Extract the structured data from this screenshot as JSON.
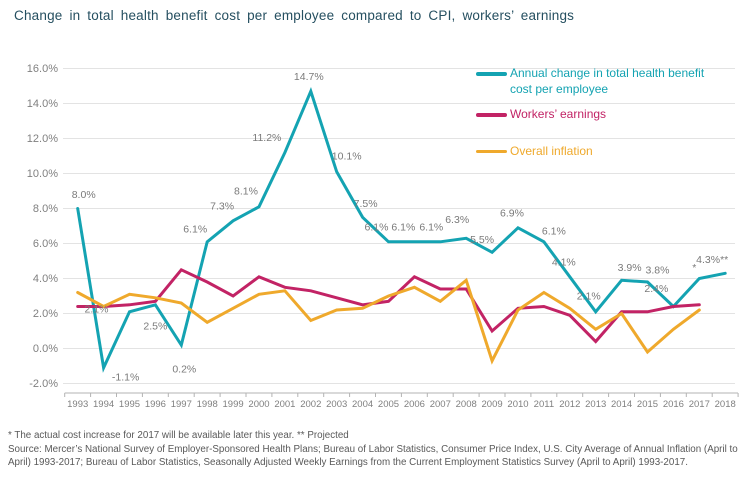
{
  "title": "Change in total health benefit cost per employee compared to CPI, workers’ earnings",
  "legend": {
    "entries": [
      {
        "color": "#14a3b2",
        "line1": "Annual change in total health benefit",
        "line2": "cost per employee"
      },
      {
        "color": "#c22365",
        "line1": "Workers’ earnings",
        "line2": ""
      },
      {
        "color": "#efa92c",
        "line1": "Overall inflation",
        "line2": ""
      }
    ]
  },
  "footnotes": {
    "note": "* The actual cost increase for 2017 will be available later this year.  ** Projected",
    "source": "Source: Mercer’s National Survey of Employer-Sponsored Health Plans; Bureau of Labor Statistics, Consumer Price Index, U.S. City Average of Annual Inflation (April to April) 1993-2017; Bureau of Labor Statistics, Seasonally Adjusted Weekly Earnings from the Current Employment Statistics Survey (April to April) 1993-2017."
  },
  "chart_data": {
    "type": "line",
    "title": "Change in total health benefit cost per employee compared to CPI, workers’ earnings",
    "x": [
      "1993",
      "1994",
      "1995",
      "1996",
      "1997",
      "1998",
      "1999",
      "2000",
      "2001",
      "2002",
      "2003",
      "2004",
      "2005",
      "2006",
      "2007",
      "2008",
      "2009",
      "2010",
      "2011",
      "2012",
      "2013",
      "2014",
      "2015",
      "2016",
      "2017",
      "2018"
    ],
    "ylim": [
      -2,
      16
    ],
    "ytick_step": 2,
    "yticks": [
      "16.0%",
      "14.0%",
      "12.0%",
      "10.0%",
      "8.0%",
      "6.0%",
      "4.0%",
      "2.0%",
      "0.0%",
      "-2.0%"
    ],
    "grid": true,
    "legend_position": "top-right",
    "series": [
      {
        "id": "health-cost",
        "name": "Annual change in total health benefit cost per employee",
        "color": "#14a3b2",
        "values": [
          8.0,
          -1.1,
          2.1,
          2.5,
          0.2,
          6.1,
          7.3,
          8.1,
          11.2,
          14.7,
          10.1,
          7.5,
          6.1,
          6.1,
          6.1,
          6.3,
          5.5,
          6.9,
          6.1,
          4.1,
          2.1,
          3.9,
          3.8,
          2.4,
          4.0,
          4.3
        ],
        "point_labels": [
          {
            "text": "8.0%",
            "dx": 6,
            "dy": -14
          },
          {
            "text": "-1.1%",
            "dx": 22,
            "dy": 9
          },
          {
            "text": "2.1%",
            "dx": -33,
            "dy": -3
          },
          {
            "text": "2.5%",
            "dx": 0,
            "dy": 21
          },
          {
            "text": "0.2%",
            "dx": 3,
            "dy": 24
          },
          {
            "text": "6.1%",
            "dx": -12,
            "dy": -13
          },
          {
            "text": "7.3%",
            "dx": -11,
            "dy": -15
          },
          {
            "text": "8.1%",
            "dx": -13,
            "dy": -16
          },
          {
            "text": "11.2%",
            "dx": -18,
            "dy": -15
          },
          {
            "text": "14.7%",
            "dx": -2,
            "dy": -15
          },
          {
            "text": "10.1%",
            "dx": 10,
            "dy": -16
          },
          {
            "text": "7.5%",
            "dx": 3,
            "dy": -14
          },
          {
            "text": "6.1%",
            "dx": -12,
            "dy": -15
          },
          {
            "text": "6.1%",
            "dx": -11,
            "dy": -15
          },
          {
            "text": "6.1%",
            "dx": -9,
            "dy": -15
          },
          {
            "text": "6.3%",
            "dx": -9,
            "dy": -19
          },
          {
            "text": "5.5%",
            "dx": -10,
            "dy": -13
          },
          {
            "text": "6.9%",
            "dx": -6,
            "dy": -15
          },
          {
            "text": "6.1%",
            "dx": 10,
            "dy": -11
          },
          {
            "text": "4.1%",
            "dx": -6,
            "dy": -15
          },
          {
            "text": "2.1%",
            "dx": -7,
            "dy": -16
          },
          {
            "text": "3.9%",
            "dx": 8,
            "dy": -13
          },
          {
            "text": "3.8%",
            "dx": 10,
            "dy": -12
          },
          {
            "text": "2.4%",
            "dx": -17,
            "dy": -18
          },
          {
            "text": "*",
            "dx": -5,
            "dy": -11
          },
          {
            "text": "4.3%**",
            "dx": -13,
            "dy": -14
          }
        ]
      },
      {
        "id": "workers-earnings",
        "name": "Workers’ earnings",
        "color": "#c22365",
        "values": [
          2.4,
          2.4,
          2.5,
          2.7,
          4.5,
          3.8,
          3.0,
          4.1,
          3.5,
          3.3,
          2.9,
          2.5,
          2.7,
          4.1,
          3.4,
          3.4,
          1.0,
          2.3,
          2.4,
          1.9,
          0.4,
          2.1,
          2.1,
          2.4,
          2.5,
          null
        ]
      },
      {
        "id": "overall-inflation",
        "name": "Overall inflation",
        "color": "#efa92c",
        "values": [
          3.2,
          2.4,
          3.1,
          2.9,
          2.6,
          1.5,
          2.3,
          3.1,
          3.3,
          1.6,
          2.2,
          2.3,
          3.0,
          3.5,
          2.7,
          3.9,
          -0.7,
          2.2,
          3.2,
          2.3,
          1.1,
          2.0,
          -0.2,
          1.1,
          2.2,
          null
        ]
      }
    ]
  }
}
